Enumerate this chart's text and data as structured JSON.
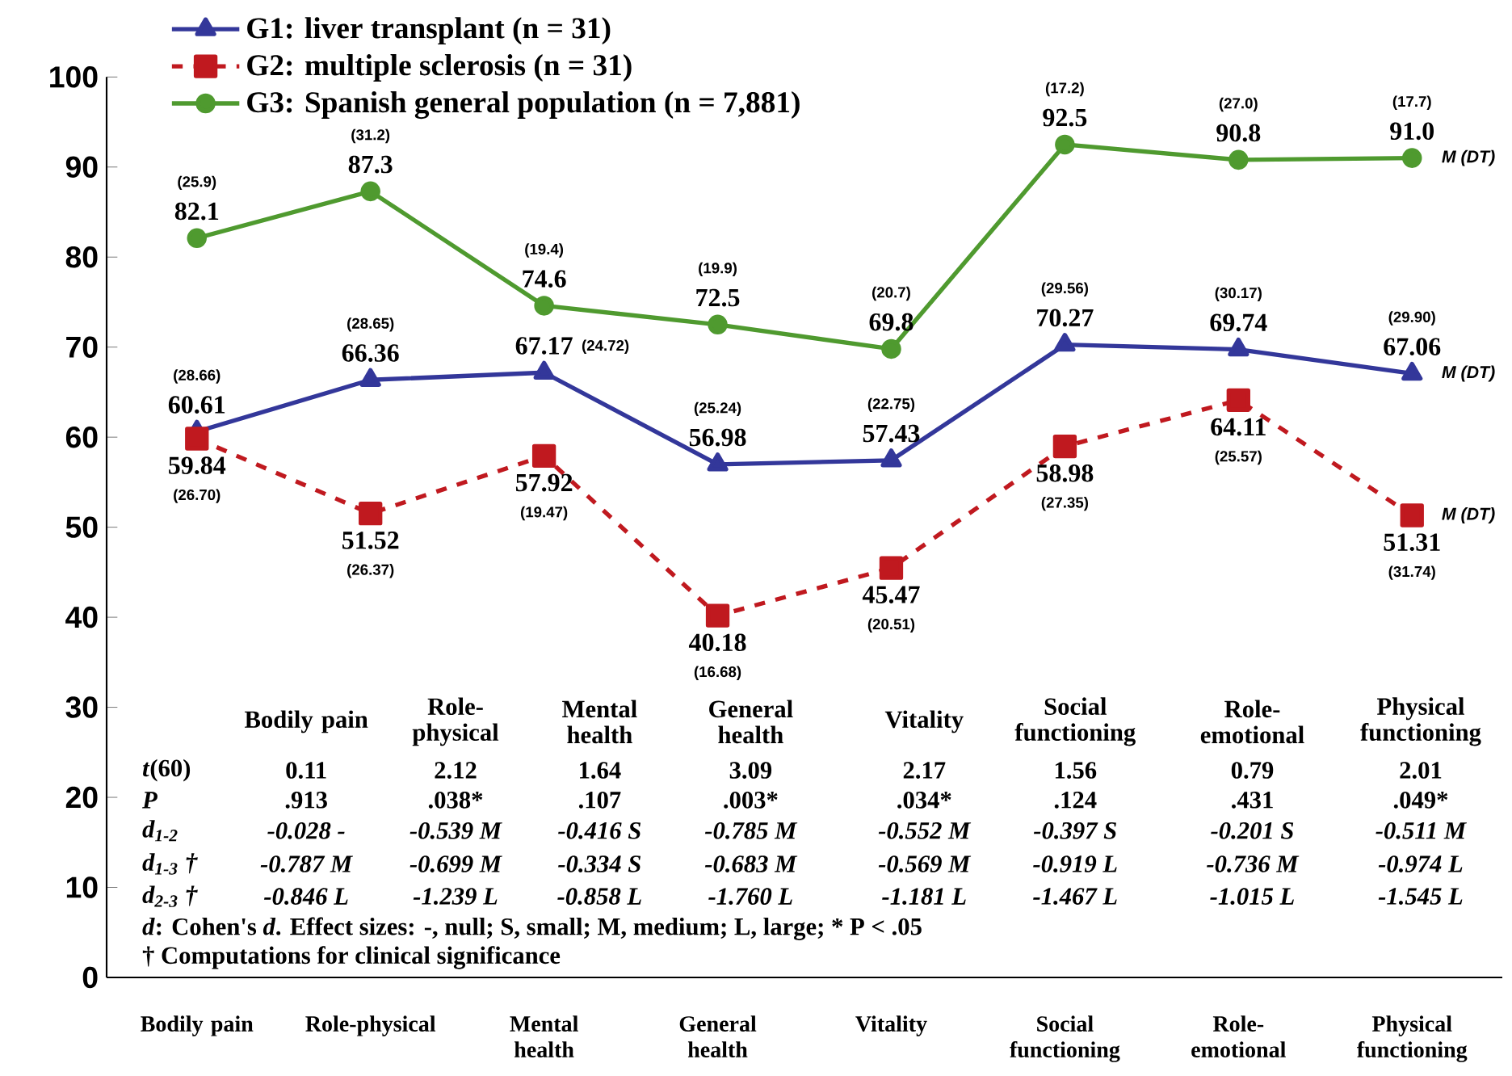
{
  "chart_data": {
    "type": "line",
    "categories": [
      "Bodily pain",
      "Role-physical",
      "Mental health",
      "General health",
      "Vitality",
      "Social functioning",
      "Role-emotional",
      "Physical functioning"
    ],
    "series": [
      {
        "name": "G1: liver transplant  (n = 31)",
        "color": "#33379a",
        "marker": "triangle",
        "line_style": "solid",
        "values": [
          60.61,
          66.36,
          67.17,
          56.98,
          57.43,
          70.27,
          69.74,
          67.06
        ],
        "value_labels": [
          "60.61",
          "66.36",
          "67.17",
          "56.98",
          "57.43",
          "70.27",
          "69.74",
          "67.06"
        ]
      },
      {
        "name": "G2: multiple sclerosis (n = 31)",
        "color": "#c0191f",
        "marker": "square",
        "line_style": "dashed",
        "values": [
          59.84,
          51.52,
          57.92,
          40.18,
          45.47,
          58.98,
          64.11,
          51.31
        ],
        "value_labels": [
          "59.84",
          "51.52",
          "57.92",
          "40.18",
          "45.47",
          "58.98",
          "64.11",
          "51.31"
        ]
      },
      {
        "name": "G3: Spanish general population (n = 7,881)",
        "color": "#4f9a2f",
        "marker": "circle",
        "line_style": "solid",
        "values": [
          82.1,
          87.3,
          74.6,
          72.5,
          69.8,
          92.5,
          90.8,
          91.0
        ],
        "value_labels": [
          "82.1",
          "87.3",
          "74.6",
          "72.5",
          "69.8",
          "92.5",
          "90.8",
          "91.0"
        ]
      }
    ],
    "ylim": [
      0,
      100
    ],
    "yticks": [
      0,
      10,
      20,
      30,
      40,
      50,
      60,
      70,
      80,
      90,
      100
    ],
    "grid": false,
    "legend": "top left",
    "annotations": [
      "*t*(60)",
      "0.11",
      "2.12",
      "1.64",
      "3.09",
      "2.17",
      "1.56",
      "0.79",
      "2.01",
      "*P*",
      ".913",
      ".038*",
      ".107",
      ".003*",
      ".034*",
      ".124",
      ".431",
      ".049*",
      "*d*$_{1-2}$",
      "-0.028 -",
      "-0.539 M",
      "-0.416 S",
      "-0.785 M",
      "-0.552 M",
      "-0.397 S",
      "-0.201 S",
      "-0.511 M",
      "*d*$_{1-3}$ †",
      "-0.787 M",
      "-0.699 M",
      "-0.334 S",
      "-0.683 M",
      "-0.569 M",
      "-0.919 L",
      "-0.736 M",
      "-0.974 L",
      "*d*$_{2-3}$ †",
      "-0.846 L",
      "-1.239 L",
      "-0.858 L",
      "-1.760 L",
      "-1.181 L",
      "-1.467 L",
      "-1.015 L",
      "-1.545 L",
      "*d*: Cohen's *d*. Effect sizes: -, null; S, small; M, medium; L, large; * P < .05",
      "† Computations for clinical significance",
      "M (DT)",
      "M (DT)",
      "M (DT)",
      "(28.66)",
      "(28.65)",
      "(24.72)",
      "(25.24)",
      "(22.75)",
      "(29.56)",
      "(30.17)",
      "(29.90)",
      "(26.70)",
      "(26.37)",
      "(19.47)",
      "(16.68)",
      "(20.51)",
      "(27.35)",
      "(25.57)",
      "(31.74)",
      "(25.9)",
      "(31.2)",
      "(19.4)",
      "(19.9)",
      "(20.7)",
      "(17.2)",
      "(27.0)",
      "(17.7)"
    ]
  }
}
